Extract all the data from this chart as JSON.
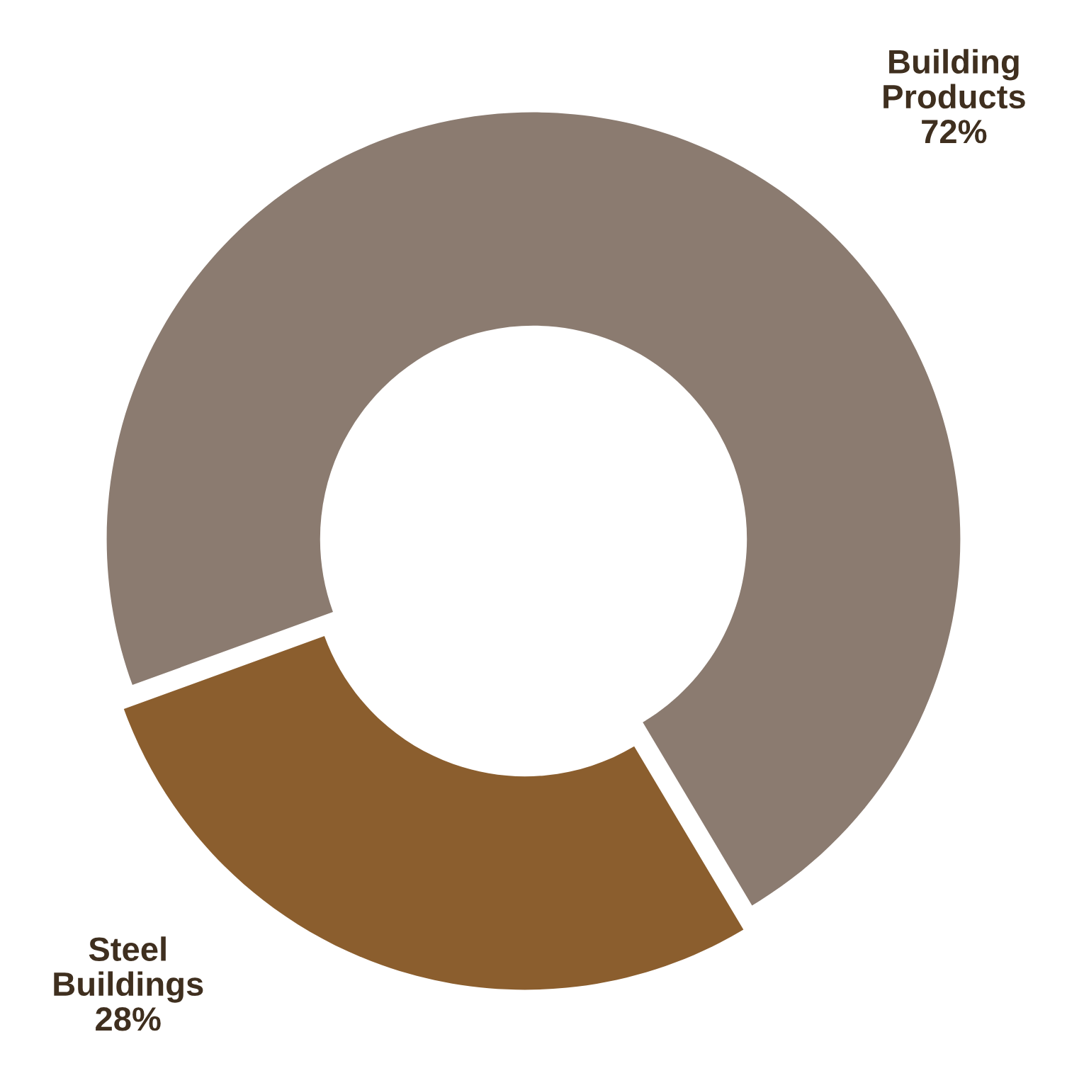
{
  "chart_data": {
    "type": "donut",
    "categories": [
      "Building\nProducts\n72%",
      "Steel\nBuildings\n28%"
    ],
    "values": [
      72,
      28
    ],
    "colors": [
      "#8b7b70",
      "#8b5e2e"
    ]
  }
}
